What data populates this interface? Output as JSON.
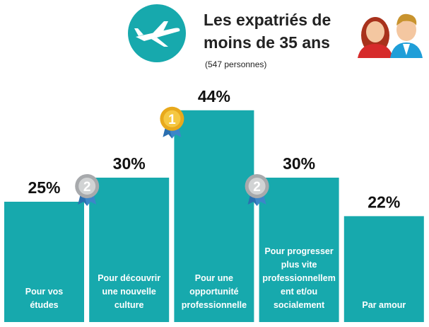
{
  "chart_data": {
    "type": "bar",
    "title": "Les expatriés de\nmoins de 35 ans",
    "subtitle": "(547 personnes)",
    "categories": [
      "Pour vos\nétudes",
      "Pour découvrir\nune nouvelle\nculture",
      "Pour une\nopportunité\nprofessionnelle",
      "Pour progresser\nplus vite\nprofessionnellem\nent et/ou\nsocialement",
      "Par amour"
    ],
    "values": [
      25,
      30,
      44,
      30,
      22
    ],
    "value_labels": [
      "25%",
      "30%",
      "44%",
      "30%",
      "22%"
    ],
    "ranks": [
      null,
      2,
      1,
      2,
      null
    ],
    "color": "#17a9ad"
  }
}
